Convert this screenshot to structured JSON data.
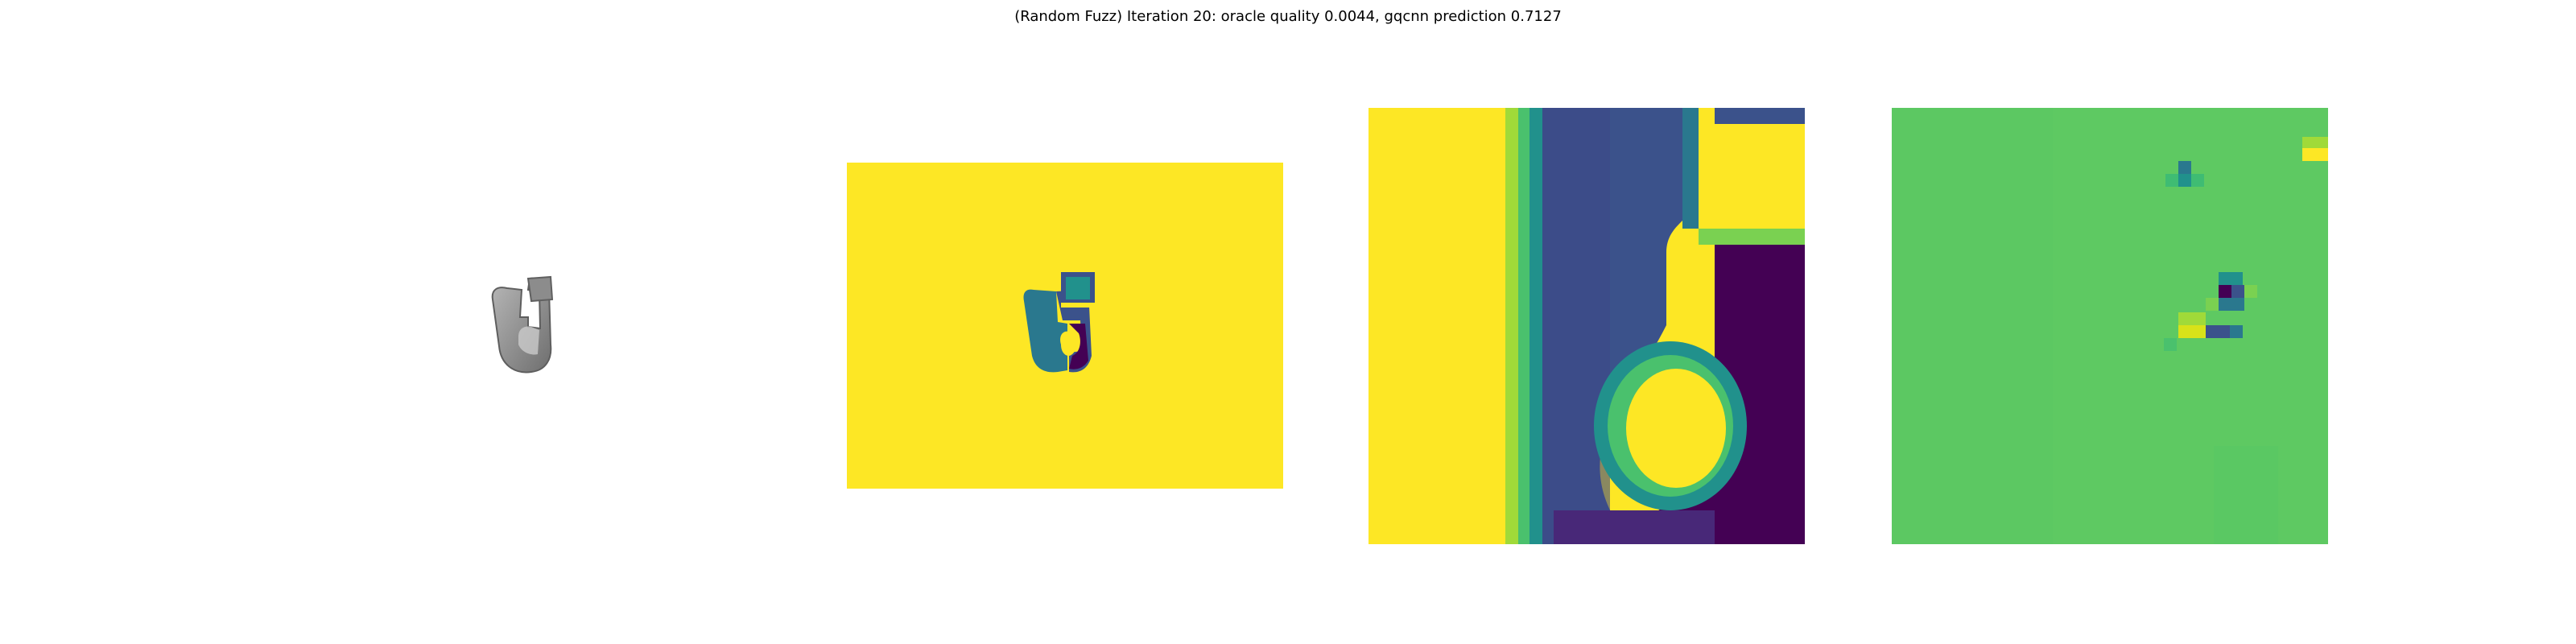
{
  "figure": {
    "title": "(Random Fuzz) Iteration 20: oracle quality 0.0044, gqcnn prediction 0.7127"
  },
  "panels": [
    {
      "name": "rendered-object",
      "kind": "grayscale render"
    },
    {
      "name": "depth-image",
      "kind": "viridis depth map"
    },
    {
      "name": "depth-crop",
      "kind": "viridis zoomed crop"
    },
    {
      "name": "fuzz-difference",
      "kind": "viridis perturbation map"
    }
  ],
  "colors": {
    "viridis_yellow": "#fde725",
    "viridis_green": "#5ec962",
    "viridis_teal": "#21918c",
    "viridis_blue": "#3b528b",
    "viridis_purple": "#440154"
  }
}
